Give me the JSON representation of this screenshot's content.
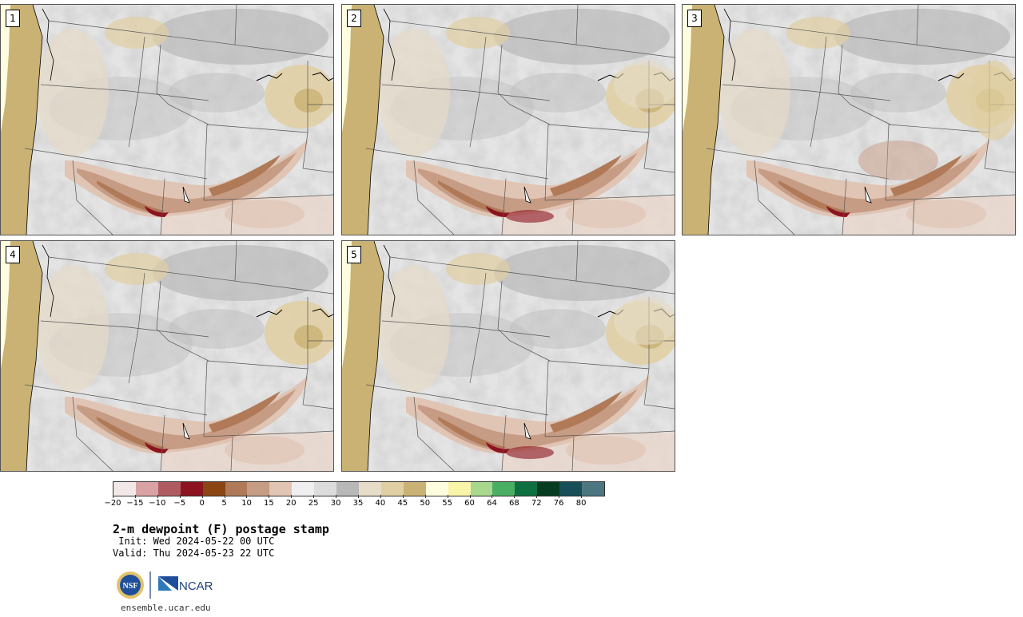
{
  "panels": [
    {
      "label": "1"
    },
    {
      "label": "2"
    },
    {
      "label": "3"
    },
    {
      "label": "4"
    },
    {
      "label": "5"
    }
  ],
  "colorbar": {
    "colors": [
      "#f2e8e8",
      "#d9a3a6",
      "#b05a62",
      "#8c1420",
      "#8a4512",
      "#b07a58",
      "#c79c84",
      "#e0c4b4",
      "#efefef",
      "#dcdcdc",
      "#b8b8b8",
      "#e6dcc8",
      "#e0cfa2",
      "#c9b273",
      "#fffde0",
      "#f8f5a8",
      "#a7d88e",
      "#4aaf64",
      "#0e7040",
      "#063d22",
      "#174e57",
      "#4d7780"
    ],
    "ticks": [
      "−20",
      "−15",
      "−10",
      "−5",
      "0",
      "5",
      "10",
      "15",
      "20",
      "25",
      "30",
      "35",
      "40",
      "45",
      "50",
      "55",
      "60",
      "64",
      "68",
      "72",
      "76",
      "80"
    ]
  },
  "title": "2-m dewpoint (F) postage stamp",
  "init": " Init: Wed 2024-05-22 00 UTC",
  "valid": "Valid: Thu 2024-05-23 22 UTC",
  "logos": {
    "nsf": "NSF",
    "ncar": "NCAR"
  },
  "site": "ensemble.ucar.edu"
}
